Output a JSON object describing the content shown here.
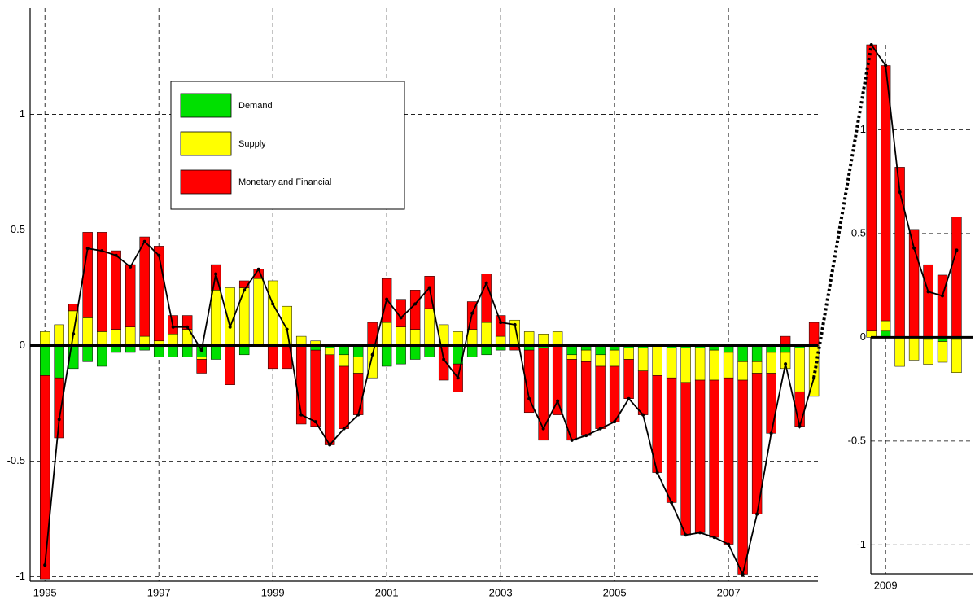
{
  "chart_data": [
    {
      "type": "stacked-bar",
      "x": [
        1995,
        1995.25,
        1995.5,
        1995.75,
        1996,
        1996.25,
        1996.5,
        1996.75,
        1997,
        1997.25,
        1997.5,
        1997.75,
        1998,
        1998.25,
        1998.5,
        1998.75,
        1999,
        1999.25,
        1999.5,
        1999.75,
        2000,
        2000.25,
        2000.5,
        2000.75,
        2001,
        2001.25,
        2001.5,
        2001.75,
        2002,
        2002.25,
        2002.5,
        2002.75,
        2003,
        2003.25,
        2003.5,
        2003.75,
        2004,
        2004.25,
        2004.5,
        2004.75,
        2005,
        2005.25,
        2005.5,
        2005.75,
        2006,
        2006.25,
        2006.5,
        2006.75,
        2007,
        2007.25,
        2007.5,
        2007.75,
        2008,
        2008.25,
        2008.5
      ],
      "series": [
        {
          "name": "Demand",
          "color": "#00e000",
          "values": [
            -0.13,
            -0.14,
            -0.1,
            -0.07,
            -0.09,
            -0.03,
            -0.03,
            -0.02,
            -0.05,
            -0.05,
            -0.05,
            -0.05,
            -0.06,
            0,
            -0.04,
            0,
            0,
            0,
            0,
            -0.02,
            -0.01,
            -0.04,
            -0.05,
            0,
            -0.09,
            -0.08,
            -0.06,
            -0.05,
            0,
            -0.08,
            -0.05,
            -0.04,
            -0.02,
            0,
            -0.02,
            -0.01,
            0,
            -0.04,
            -0.02,
            -0.04,
            -0.02,
            -0.01,
            -0.01,
            0,
            -0.01,
            -0.01,
            -0.01,
            -0.02,
            -0.03,
            -0.07,
            -0.07,
            -0.03,
            -0.03,
            -0.01,
            0
          ]
        },
        {
          "name": "Supply",
          "color": "#ffff00",
          "values": [
            0.06,
            0.09,
            0.15,
            0.12,
            0.06,
            0.07,
            0.08,
            0.04,
            0.02,
            0.05,
            0.07,
            -0.01,
            0.24,
            0.25,
            0.25,
            0.29,
            0.28,
            0.17,
            0.04,
            0.02,
            -0.03,
            -0.05,
            -0.07,
            -0.14,
            0.1,
            0.08,
            0.07,
            0.16,
            0.09,
            0.06,
            0.07,
            0.1,
            0.04,
            0.11,
            0.06,
            0.05,
            0.06,
            -0.02,
            -0.05,
            -0.05,
            -0.07,
            -0.05,
            -0.1,
            -0.13,
            -0.13,
            -0.15,
            -0.14,
            -0.13,
            -0.11,
            -0.08,
            -0.05,
            -0.09,
            -0.07,
            -0.19,
            -0.22
          ]
        },
        {
          "name": "Monetary and Financial",
          "color": "#ff0000",
          "values": [
            -0.88,
            -0.26,
            0.03,
            0.37,
            0.43,
            0.34,
            0.27,
            0.43,
            0.41,
            0.08,
            0.06,
            -0.06,
            0.11,
            -0.17,
            0.03,
            0.04,
            -0.1,
            -0.1,
            -0.34,
            -0.33,
            -0.39,
            -0.27,
            -0.18,
            0.1,
            0.19,
            0.12,
            0.17,
            0.14,
            -0.15,
            -0.12,
            0.12,
            0.21,
            0.09,
            -0.02,
            -0.27,
            -0.4,
            -0.3,
            -0.35,
            -0.32,
            -0.27,
            -0.24,
            -0.17,
            -0.19,
            -0.42,
            -0.54,
            -0.66,
            -0.66,
            -0.68,
            -0.72,
            -0.84,
            -0.61,
            -0.26,
            0.04,
            -0.15,
            0.1
          ]
        }
      ],
      "total": {
        "color": "#000000",
        "values": [
          -0.95,
          -0.32,
          0.05,
          0.42,
          0.41,
          0.39,
          0.34,
          0.45,
          0.39,
          0.08,
          0.08,
          -0.02,
          0.31,
          0.08,
          0.24,
          0.33,
          0.18,
          0.07,
          -0.3,
          -0.33,
          -0.43,
          -0.36,
          -0.3,
          -0.04,
          0.2,
          0.12,
          0.18,
          0.25,
          -0.06,
          -0.14,
          0.14,
          0.27,
          0.1,
          0.09,
          -0.23,
          -0.36,
          -0.24,
          -0.41,
          -0.39,
          -0.36,
          -0.33,
          -0.23,
          -0.3,
          -0.55,
          -0.68,
          -0.82,
          -0.81,
          -0.83,
          -0.86,
          -0.99,
          -0.73,
          -0.38,
          -0.08,
          -0.35,
          -0.14
        ]
      },
      "xlim": [
        1994.74,
        2008.57
      ],
      "xticks": [
        1995,
        1997,
        1999,
        2001,
        2003,
        2005,
        2007
      ],
      "ylim": [
        -1.02,
        1.46
      ],
      "yticks": [
        -1,
        -0.5,
        0,
        0.5,
        1
      ],
      "grid": true,
      "legend": "upper left"
    },
    {
      "type": "stacked-bar",
      "x": [
        2008.75,
        2009,
        2009.25,
        2009.5,
        2009.75,
        2010,
        2010.25
      ],
      "series": [
        {
          "color": "#00e000",
          "values": [
            0,
            0.03,
            0,
            0,
            -0.01,
            -0.02,
            -0.01
          ]
        },
        {
          "color": "#ffff00",
          "values": [
            0.03,
            0.05,
            -0.14,
            -0.11,
            -0.12,
            -0.1,
            -0.16
          ]
        },
        {
          "color": "#ff0000",
          "values": [
            1.38,
            1.23,
            0.82,
            0.52,
            0.35,
            0.3,
            0.58
          ]
        }
      ],
      "total": {
        "color": "#000000",
        "values": [
          1.41,
          1.31,
          0.7,
          0.43,
          0.22,
          0.2,
          0.42
        ]
      },
      "xlim": [
        2008.74,
        2010.53
      ],
      "xticks": [
        2009
      ],
      "ylim": [
        -1.14,
        1.41
      ],
      "yticks": [
        -1,
        -0.5,
        0,
        0.5,
        1
      ],
      "grid": true
    }
  ]
}
